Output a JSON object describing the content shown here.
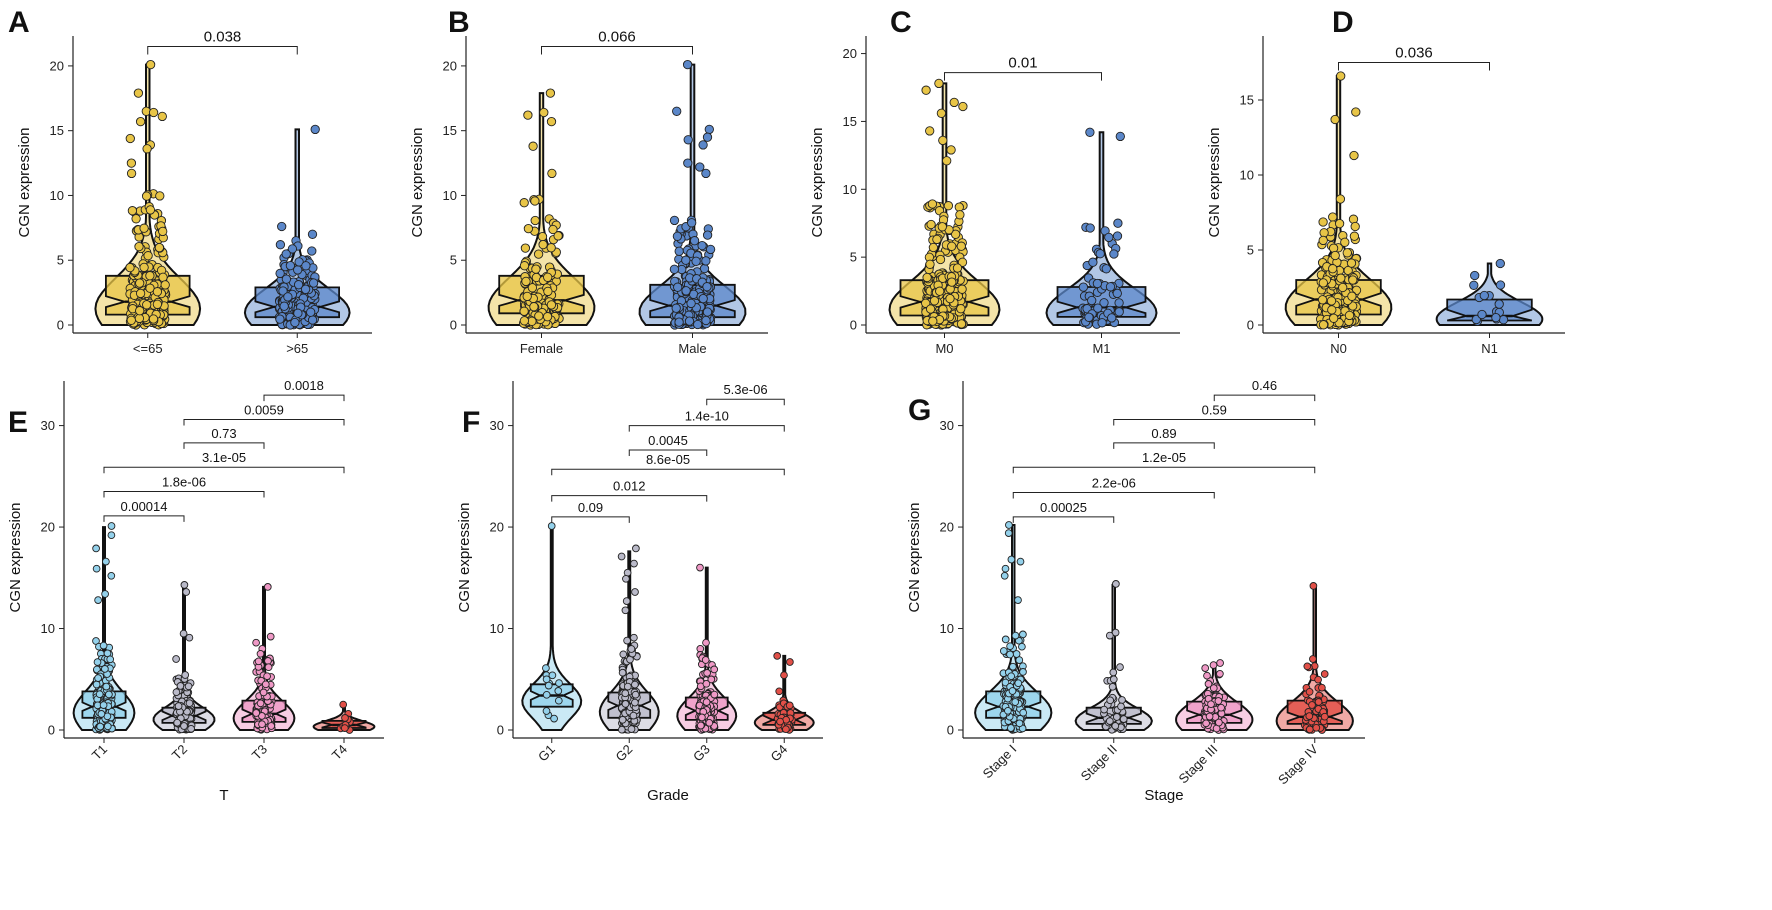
{
  "chart_data": [
    {
      "panel": "A",
      "type": "violin-box-jitter",
      "xlabel": "",
      "ylabel": "CGN expression",
      "ylim": [
        0,
        22
      ],
      "yticks": [
        0,
        5,
        10,
        15,
        20
      ],
      "groups": [
        {
          "label": "<=65",
          "color": "#E8C547",
          "q1": 0.8,
          "median": 1.8,
          "q3": 3.8,
          "wlow": 0,
          "whigh": 20.1,
          "n": 260,
          "max_points": [
            20.1,
            17.9,
            16.5,
            16.4,
            16.1,
            15.7,
            14.4,
            13.9,
            13.6,
            12.5,
            11.7
          ]
        },
        {
          "label": ">65",
          "color": "#5B87C9",
          "q1": 0.6,
          "median": 1.4,
          "q3": 2.9,
          "wlow": 0,
          "whigh": 15.1,
          "n": 220,
          "max_points": [
            15.1,
            7.6,
            7.0,
            6.5,
            6.2
          ]
        }
      ],
      "comparisons": [
        {
          "a": 0,
          "b": 1,
          "label": "0.038",
          "y": 21.5
        }
      ]
    },
    {
      "panel": "B",
      "type": "violin-box-jitter",
      "xlabel": "",
      "ylabel": "CGN expression",
      "ylim": [
        0,
        22
      ],
      "yticks": [
        0,
        5,
        10,
        15,
        20
      ],
      "groups": [
        {
          "label": "Female",
          "color": "#E8C547",
          "q1": 0.9,
          "median": 1.9,
          "q3": 3.8,
          "wlow": 0,
          "whigh": 17.9,
          "n": 170,
          "max_points": [
            17.9,
            16.4,
            16.2,
            15.7,
            13.8,
            11.7,
            9.7
          ]
        },
        {
          "label": "Male",
          "color": "#5B87C9",
          "q1": 0.6,
          "median": 1.5,
          "q3": 3.1,
          "wlow": 0,
          "whigh": 20.1,
          "n": 310,
          "max_points": [
            20.1,
            16.5,
            15.1,
            14.5,
            14.3,
            13.9,
            12.5,
            12.2,
            11.7
          ]
        }
      ],
      "comparisons": [
        {
          "a": 0,
          "b": 1,
          "label": "0.066",
          "y": 21.5
        }
      ]
    },
    {
      "panel": "C",
      "type": "violin-box-jitter",
      "xlabel": "",
      "ylabel": "CGN expression",
      "ylim": [
        0,
        21
      ],
      "yticks": [
        0,
        5,
        10,
        15,
        20
      ],
      "groups": [
        {
          "label": "M0",
          "color": "#E8C547",
          "q1": 0.7,
          "median": 1.7,
          "q3": 3.3,
          "wlow": 0,
          "whigh": 17.8,
          "n": 400,
          "max_points": [
            17.8,
            17.3,
            16.4,
            16.1,
            15.6,
            14.3,
            13.6,
            12.9,
            12.1
          ]
        },
        {
          "label": "M1",
          "color": "#5B87C9",
          "q1": 0.6,
          "median": 1.3,
          "q3": 2.8,
          "wlow": 0,
          "whigh": 14.2,
          "n": 75,
          "max_points": [
            14.2,
            13.9,
            7.5,
            7.2
          ]
        }
      ],
      "comparisons": [
        {
          "a": 0,
          "b": 1,
          "label": "0.01",
          "y": 18.6
        }
      ]
    },
    {
      "panel": "D",
      "type": "violin-box-jitter",
      "xlabel": "",
      "ylabel": "CGN expression",
      "ylim": [
        0,
        19
      ],
      "yticks": [
        0,
        5,
        10,
        15
      ],
      "groups": [
        {
          "label": "N0",
          "color": "#E8C547",
          "q1": 0.7,
          "median": 1.7,
          "q3": 3.0,
          "wlow": 0,
          "whigh": 16.6,
          "n": 230,
          "max_points": [
            16.6,
            14.2,
            13.7,
            11.3,
            8.4,
            7.2
          ]
        },
        {
          "label": "N1",
          "color": "#5B87C9",
          "q1": 0.3,
          "median": 0.6,
          "q3": 1.7,
          "wlow": 0,
          "whigh": 4.1,
          "n": 16,
          "max_points": [
            4.1,
            3.3
          ]
        }
      ],
      "comparisons": [
        {
          "a": 0,
          "b": 1,
          "label": "0.036",
          "y": 17.5
        }
      ]
    },
    {
      "panel": "E",
      "type": "violin-box-jitter",
      "xlabel": "T",
      "ylabel": "CGN expression",
      "ylim": [
        0,
        34
      ],
      "yticks": [
        0,
        10,
        20,
        30
      ],
      "groups": [
        {
          "label": "T1",
          "color": "#8ECFEA",
          "q1": 1.2,
          "median": 2.3,
          "q3": 3.8,
          "wlow": 0,
          "whigh": 20.0,
          "n": 230,
          "max_points": [
            20.1,
            19.2,
            17.9,
            16.6,
            15.9,
            15.2,
            13.4,
            12.8
          ]
        },
        {
          "label": "T2",
          "color": "#B6B6C6",
          "q1": 0.7,
          "median": 1.4,
          "q3": 2.2,
          "wlow": 0,
          "whigh": 14.3,
          "n": 150,
          "max_points": [
            14.3,
            13.6,
            9.5,
            9.1,
            7.0
          ]
        },
        {
          "label": "T3",
          "color": "#EE94C3",
          "q1": 0.8,
          "median": 1.6,
          "q3": 2.9,
          "wlow": 0,
          "whigh": 14.1,
          "n": 160,
          "max_points": [
            14.1,
            9.2,
            8.6,
            8.0
          ]
        },
        {
          "label": "T4",
          "color": "#E0473E",
          "q1": 0.2,
          "median": 0.5,
          "q3": 0.9,
          "wlow": 0,
          "whigh": 2.6,
          "n": 12,
          "max_points": [
            2.5,
            1.6
          ]
        }
      ],
      "comparisons": [
        {
          "a": 0,
          "b": 1,
          "label": "0.00014",
          "y": 21.1
        },
        {
          "a": 0,
          "b": 2,
          "label": "1.8e-06",
          "y": 23.5
        },
        {
          "a": 0,
          "b": 3,
          "label": "3.1e-05",
          "y": 25.9
        },
        {
          "a": 1,
          "b": 2,
          "label": "0.73",
          "y": 28.3
        },
        {
          "a": 1,
          "b": 3,
          "label": "0.0059",
          "y": 30.6
        },
        {
          "a": 2,
          "b": 3,
          "label": "0.0018",
          "y": 33.0
        }
      ]
    },
    {
      "panel": "F",
      "type": "violin-box-jitter",
      "xlabel": "Grade",
      "ylabel": "CGN expression",
      "ylim": [
        0,
        34
      ],
      "yticks": [
        0,
        10,
        20,
        30
      ],
      "groups": [
        {
          "label": "G1",
          "color": "#8ECFEA",
          "q1": 2.3,
          "median": 3.4,
          "q3": 4.5,
          "wlow": 0,
          "whigh": 20.0,
          "n": 14,
          "max_points": [
            20.1,
            6.1,
            5.4
          ]
        },
        {
          "label": "G2",
          "color": "#B6B6C6",
          "q1": 1.2,
          "median": 2.4,
          "q3": 3.7,
          "wlow": 0,
          "whigh": 17.6,
          "n": 210,
          "max_points": [
            17.9,
            17.1,
            16.4,
            15.5,
            14.9,
            13.6,
            12.7,
            11.8
          ]
        },
        {
          "label": "G3",
          "color": "#EE94C3",
          "q1": 1.0,
          "median": 1.9,
          "q3": 3.2,
          "wlow": 0,
          "whigh": 16.0,
          "n": 190,
          "max_points": [
            16.0,
            8.6,
            8.0,
            7.4
          ]
        },
        {
          "label": "G4",
          "color": "#E0473E",
          "q1": 0.5,
          "median": 1.0,
          "q3": 1.7,
          "wlow": 0,
          "whigh": 7.3,
          "n": 60,
          "max_points": [
            7.3,
            6.7,
            5.4
          ]
        }
      ],
      "comparisons": [
        {
          "a": 0,
          "b": 1,
          "label": "0.09",
          "y": 21.0
        },
        {
          "a": 0,
          "b": 2,
          "label": "0.012",
          "y": 23.1
        },
        {
          "a": 0,
          "b": 3,
          "label": "8.6e-05",
          "y": 25.7
        },
        {
          "a": 1,
          "b": 2,
          "label": "0.0045",
          "y": 27.6
        },
        {
          "a": 1,
          "b": 3,
          "label": "1.4e-10",
          "y": 30.0
        },
        {
          "a": 2,
          "b": 3,
          "label": "5.3e-06",
          "y": 32.6
        }
      ]
    },
    {
      "panel": "G",
      "type": "violin-box-jitter",
      "xlabel": "Stage",
      "ylabel": "CGN expression",
      "ylim": [
        0,
        34
      ],
      "yticks": [
        0,
        10,
        20,
        30
      ],
      "groups": [
        {
          "label": "Stage I",
          "color": "#8ECFEA",
          "q1": 1.2,
          "median": 2.3,
          "q3": 3.8,
          "wlow": 0,
          "whigh": 20.2,
          "n": 230,
          "max_points": [
            20.2,
            19.4,
            16.8,
            16.6,
            15.9,
            15.2,
            12.8
          ]
        },
        {
          "label": "Stage II",
          "color": "#B6B6C6",
          "q1": 0.6,
          "median": 1.2,
          "q3": 2.2,
          "wlow": 0,
          "whigh": 14.3,
          "n": 60,
          "max_points": [
            14.4,
            9.6,
            9.3,
            6.2
          ]
        },
        {
          "label": "Stage III",
          "color": "#EE94C3",
          "q1": 0.7,
          "median": 1.5,
          "q3": 2.8,
          "wlow": 0,
          "whigh": 6.5,
          "n": 110,
          "max_points": [
            6.6,
            6.4,
            6.1
          ]
        },
        {
          "label": "Stage IV",
          "color": "#E0473E",
          "q1": 0.6,
          "median": 1.3,
          "q3": 2.9,
          "wlow": 0,
          "whigh": 14.2,
          "n": 80,
          "max_points": [
            14.2,
            7.0,
            6.3
          ]
        }
      ],
      "comparisons": [
        {
          "a": 0,
          "b": 1,
          "label": "0.00025",
          "y": 21.0
        },
        {
          "a": 0,
          "b": 2,
          "label": "2.2e-06",
          "y": 23.4
        },
        {
          "a": 0,
          "b": 3,
          "label": "1.2e-05",
          "y": 25.9
        },
        {
          "a": 1,
          "b": 2,
          "label": "0.89",
          "y": 28.3
        },
        {
          "a": 1,
          "b": 3,
          "label": "0.59",
          "y": 30.6
        },
        {
          "a": 2,
          "b": 3,
          "label": "0.46",
          "y": 33.0
        }
      ]
    }
  ]
}
